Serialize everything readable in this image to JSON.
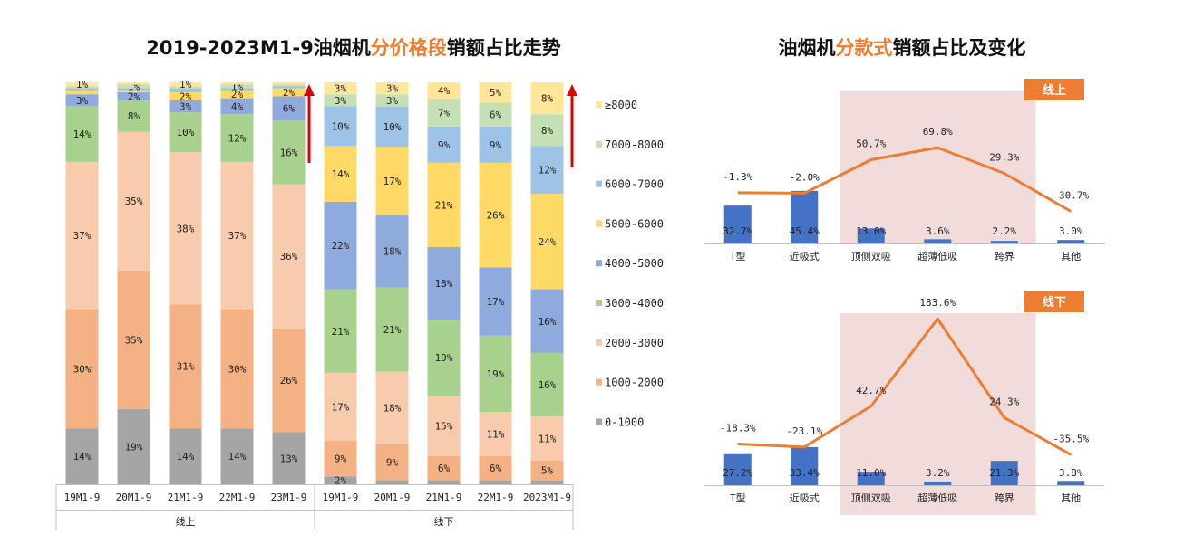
{
  "titles": {
    "left": {
      "pre": "2019-2023M1-9油烟机",
      "hl": "分价格段",
      "post": "销额占比走势"
    },
    "right": {
      "pre": "油烟机",
      "hl": "分款式",
      "post": "销额占比及变化"
    }
  },
  "colors": {
    "highlight": "#ED7D31",
    "arrow": "#E00000",
    "bar_blue": "#4472C4",
    "line_orange": "#ED7D31",
    "shade": "#F2DCDB"
  },
  "chart_data": [
    {
      "type": "bar",
      "stacked": true,
      "normalized": true,
      "title": "2019-2023M1-9油烟机分价格段销额占比走势",
      "groups": [
        {
          "name": "线上",
          "categories": [
            "19M1-9",
            "20M1-9",
            "21M1-9",
            "22M1-9",
            "23M1-9"
          ]
        },
        {
          "name": "线下",
          "categories": [
            "19M1-9",
            "20M1-9",
            "21M1-9",
            "22M1-9",
            "2023M1-9"
          ]
        }
      ],
      "series": [
        {
          "name": "0-1000",
          "color": "#A5A5A5",
          "values": [
            14,
            19,
            14,
            14,
            13,
            2,
            1,
            1,
            1,
            1
          ],
          "labels": [
            "14%",
            "19%",
            "14%",
            "14%",
            "13%",
            "2%",
            "",
            "",
            "",
            ""
          ]
        },
        {
          "name": "1000-2000",
          "color": "#F4B183",
          "values": [
            30,
            35,
            31,
            30,
            26,
            9,
            9,
            6,
            6,
            5
          ],
          "labels": [
            "30%",
            "35%",
            "31%",
            "30%",
            "26%",
            "9%",
            "9%",
            "6%",
            "6%",
            "5%"
          ]
        },
        {
          "name": "2000-3000",
          "color": "#F8CBAD",
          "values": [
            37,
            35,
            38,
            37,
            36,
            17,
            18,
            15,
            11,
            11
          ],
          "labels": [
            "37%",
            "35%",
            "38%",
            "37%",
            "36%",
            "17%",
            "18%",
            "15%",
            "11%",
            "11%"
          ]
        },
        {
          "name": "3000-4000",
          "color": "#A9D18E",
          "values": [
            14,
            8,
            10,
            12,
            16,
            21,
            21,
            19,
            19,
            16
          ],
          "labels": [
            "14%",
            "8%",
            "10%",
            "12%",
            "16%",
            "21%",
            "21%",
            "19%",
            "19%",
            "16%"
          ]
        },
        {
          "name": "4000-5000",
          "color": "#8FAADC",
          "values": [
            3,
            2,
            3,
            4,
            6,
            22,
            18,
            18,
            17,
            16
          ],
          "labels": [
            "3%",
            "2%",
            "3%",
            "4%",
            "6%",
            "22%",
            "18%",
            "18%",
            "17%",
            "16%"
          ]
        },
        {
          "name": "5000-6000",
          "color": "#FFD966",
          "values": [
            1,
            0.5,
            2,
            2,
            2,
            14,
            17,
            21,
            26,
            24
          ],
          "labels": [
            "",
            "",
            "2%",
            "2%",
            "2%",
            "14%",
            "17%",
            "21%",
            "26%",
            "24%"
          ]
        },
        {
          "name": "6000-7000",
          "color": "#9DC3E6",
          "values": [
            0.5,
            0.5,
            1,
            0.5,
            0.5,
            10,
            10,
            9,
            9,
            12
          ],
          "labels": [
            "",
            "",
            "",
            "",
            "",
            "10%",
            "10%",
            "9%",
            "9%",
            "12%"
          ]
        },
        {
          "name": "7000-8000",
          "color": "#C5E0B4",
          "values": [
            0.5,
            1,
            0.5,
            1,
            0.5,
            3,
            3,
            7,
            6,
            8
          ],
          "labels": [
            "",
            "1%",
            "",
            "1%",
            "",
            "3%",
            "3%",
            "7%",
            "6%",
            "8%"
          ]
        },
        {
          "name": "≥8000",
          "color": "#FFE699",
          "values": [
            1,
            0.5,
            1,
            0.5,
            0.5,
            3,
            3,
            4,
            5,
            8
          ],
          "labels": [
            "1%",
            "",
            "1%",
            "",
            "",
            "3%",
            "3%",
            "4%",
            "5%",
            "8%"
          ]
        }
      ],
      "legend": "right"
    },
    {
      "type": "bar",
      "title": "油烟机分款式销额占比及变化",
      "badge": "线上",
      "categories": [
        "T型",
        "近吸式",
        "顶侧双吸",
        "超薄低吸",
        "跨界",
        "其他"
      ],
      "series": [
        {
          "name": "share",
          "kind": "bar",
          "values": [
            32.7,
            45.4,
            13.0,
            3.6,
            2.2,
            3.0
          ],
          "labels": [
            "32.7%",
            "45.4%",
            "13.0%",
            "3.6%",
            "2.2%",
            "3.0%"
          ]
        },
        {
          "name": "change",
          "kind": "line",
          "values": [
            -1.3,
            -2.0,
            50.7,
            69.8,
            29.3,
            -30.7
          ],
          "labels": [
            "-1.3%",
            "-2.0%",
            "50.7%",
            "69.8%",
            "29.3%",
            "-30.7%"
          ]
        }
      ],
      "highlight_categories": [
        "顶侧双吸",
        "超薄低吸",
        "跨界"
      ]
    },
    {
      "type": "bar",
      "title": "油烟机分款式销额占比及变化",
      "badge": "线下",
      "categories": [
        "T型",
        "近吸式",
        "顶侧双吸",
        "超薄低吸",
        "跨界",
        "其他"
      ],
      "series": [
        {
          "name": "share",
          "kind": "bar",
          "values": [
            27.2,
            33.4,
            11.0,
            3.2,
            21.3,
            3.8
          ],
          "labels": [
            "27.2%",
            "33.4%",
            "11.0%",
            "3.2%",
            "21.3%",
            "3.8%"
          ]
        },
        {
          "name": "change",
          "kind": "line",
          "values": [
            -18.3,
            -23.1,
            42.7,
            183.6,
            24.3,
            -35.5
          ],
          "labels": [
            "-18.3%",
            "-23.1%",
            "42.7%",
            "183.6%",
            "24.3%",
            "-35.5%"
          ]
        }
      ],
      "highlight_categories": [
        "顶侧双吸",
        "超薄低吸",
        "跨界"
      ]
    }
  ]
}
